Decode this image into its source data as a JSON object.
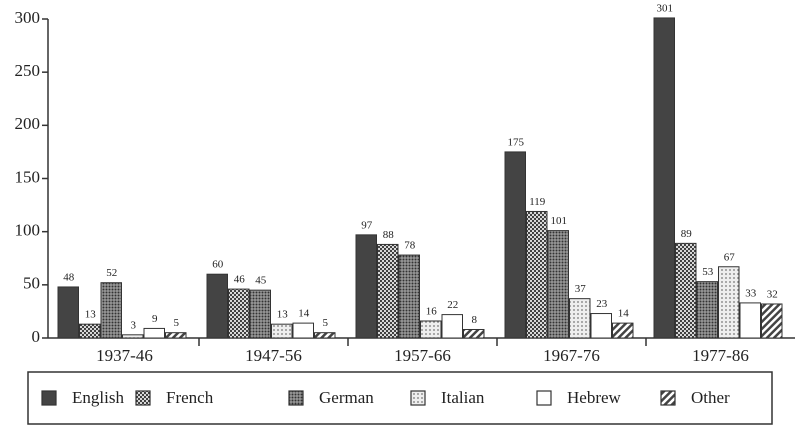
{
  "chart_data": {
    "type": "bar",
    "categories": [
      "1937-46",
      "1947-56",
      "1957-66",
      "1967-76",
      "1977-86"
    ],
    "series": [
      {
        "name": "English",
        "color": "#444444",
        "values": [
          48,
          60,
          97,
          175,
          301
        ]
      },
      {
        "name": "French",
        "color": "#8a8a8a",
        "values": [
          13,
          46,
          88,
          119,
          89
        ]
      },
      {
        "name": "German",
        "color": "#6e6e6e",
        "values": [
          52,
          45,
          78,
          101,
          53
        ]
      },
      {
        "name": "Italian",
        "color": "#c4c4c4",
        "values": [
          3,
          13,
          16,
          37,
          67
        ]
      },
      {
        "name": "Hebrew",
        "color": "#ffffff",
        "values": [
          9,
          14,
          22,
          23,
          33
        ]
      },
      {
        "name": "Other",
        "color": "#555555",
        "values": [
          5,
          5,
          8,
          14,
          32
        ]
      }
    ],
    "ylim": [
      0,
      300
    ],
    "yticks": [
      0,
      50,
      100,
      150,
      200,
      250,
      300
    ],
    "legend": "bottom"
  }
}
